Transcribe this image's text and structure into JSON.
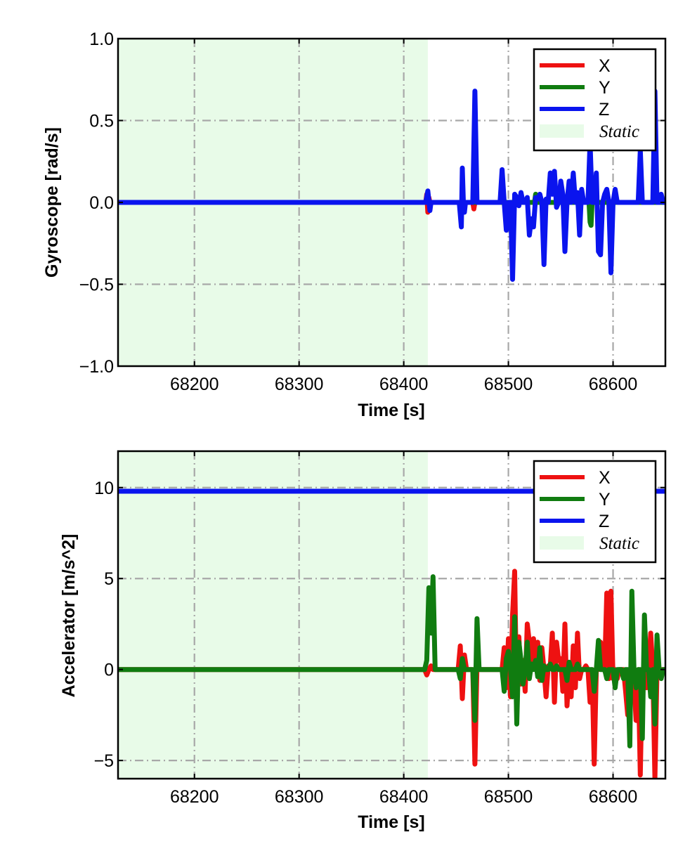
{
  "chart_data": [
    {
      "type": "line",
      "xlabel": "Time [s]",
      "ylabel": "Gyroscope [rad/s]",
      "xlim": [
        68127,
        68650
      ],
      "ylim": [
        -1.0,
        1.0
      ],
      "xticks": [
        68200,
        68300,
        68400,
        68500,
        68600
      ],
      "xtick_labels": [
        "68200",
        "68300",
        "68400",
        "68500",
        "68600"
      ],
      "yticks": [
        -1.0,
        -0.5,
        0.0,
        0.5,
        1.0
      ],
      "ytick_labels": [
        "−1.0",
        "−0.5",
        "0.0",
        "0.5",
        "1.0"
      ],
      "grid": true,
      "legend_position": "top-right",
      "static_region": {
        "label": "Static",
        "x": [
          68127,
          68423
        ],
        "color": "#e8fbe8"
      },
      "series": [
        {
          "name": "X",
          "color": "#ee1111",
          "x": [
            68127,
            68421,
            68422,
            68423,
            68424,
            68425,
            68466,
            68467,
            68468,
            68650
          ],
          "y": [
            0.0,
            0.0,
            0.05,
            -0.06,
            0.03,
            0.0,
            0.0,
            -0.04,
            0.0,
            0.0
          ]
        },
        {
          "name": "Y",
          "color": "#107c10",
          "x": [
            68127,
            68525,
            68526,
            68527,
            68577,
            68578,
            68579,
            68580,
            68650
          ],
          "y": [
            0.0,
            0.0,
            0.05,
            0.0,
            0.0,
            -0.12,
            -0.14,
            0.0,
            0.0
          ]
        },
        {
          "name": "Z",
          "color": "#0a14ee",
          "x": [
            68127,
            68421,
            68423,
            68425,
            68426,
            68453,
            68455,
            68456,
            68457,
            68458,
            68459,
            68464,
            68466,
            68468,
            68470,
            68472,
            68474,
            68492,
            68494,
            68496,
            68498,
            68500,
            68502,
            68504,
            68506,
            68508,
            68510,
            68512,
            68514,
            68516,
            68518,
            68520,
            68522,
            68524,
            68526,
            68528,
            68530,
            68532,
            68534,
            68536,
            68538,
            68540,
            68542,
            68544,
            68546,
            68548,
            68550,
            68552,
            68554,
            68556,
            68558,
            68560,
            68562,
            68564,
            68566,
            68568,
            68570,
            68572,
            68574,
            68576,
            68578,
            68580,
            68582,
            68584,
            68586,
            68588,
            68590,
            68592,
            68594,
            68596,
            68598,
            68600,
            68602,
            68604,
            68606,
            68620,
            68624,
            68626,
            68628,
            68630,
            68632,
            68634,
            68636,
            68638,
            68640,
            68642,
            68644,
            68646,
            68648,
            68650
          ],
          "y": [
            0.0,
            0.0,
            0.07,
            -0.05,
            0.0,
            0.0,
            -0.15,
            0.21,
            0.0,
            -0.06,
            0.0,
            0.0,
            0.0,
            0.68,
            0.0,
            0.0,
            0.0,
            0.0,
            0.2,
            0.0,
            -0.17,
            0.0,
            0.0,
            -0.47,
            0.05,
            0.03,
            -0.02,
            0.06,
            0.0,
            0.0,
            0.03,
            -0.2,
            -0.1,
            -0.15,
            0.03,
            0.02,
            0.05,
            0.0,
            -0.38,
            0.02,
            0.0,
            0.18,
            0.05,
            0.19,
            -0.03,
            0.0,
            0.13,
            0.05,
            -0.3,
            0.0,
            0.13,
            0.0,
            0.18,
            0.0,
            0.06,
            -0.2,
            0.08,
            0.0,
            0.0,
            0.0,
            0.37,
            0.0,
            0.0,
            0.18,
            -0.3,
            -0.32,
            0.0,
            0.05,
            0.08,
            0.0,
            -0.43,
            0.0,
            0.08,
            0.0,
            0.0,
            0.0,
            0.0,
            0.32,
            0.0,
            0.0,
            0.0,
            0.0,
            0.0,
            0.0,
            0.68,
            0.0,
            0.0,
            0.05,
            0.0,
            0.0
          ]
        }
      ]
    },
    {
      "type": "line",
      "xlabel": "Time [s]",
      "ylabel": "Accelerator [m/s^2]",
      "xlim": [
        68127,
        68650
      ],
      "ylim": [
        -6.0,
        12.0
      ],
      "xticks": [
        68200,
        68300,
        68400,
        68500,
        68600
      ],
      "xtick_labels": [
        "68200",
        "68300",
        "68400",
        "68500",
        "68600"
      ],
      "yticks": [
        -5,
        0,
        5,
        10
      ],
      "ytick_labels": [
        "−5",
        "0",
        "5",
        "10"
      ],
      "grid": true,
      "legend_position": "top-right",
      "static_region": {
        "label": "Static",
        "x": [
          68127,
          68423
        ],
        "color": "#e8fbe8"
      },
      "series": [
        {
          "name": "X",
          "color": "#ee1111",
          "x": [
            68127,
            68420,
            68422,
            68424,
            68426,
            68428,
            68452,
            68454,
            68456,
            68458,
            68460,
            68466,
            68468,
            68470,
            68472,
            68474,
            68494,
            68496,
            68498,
            68500,
            68502,
            68504,
            68506,
            68508,
            68510,
            68512,
            68514,
            68516,
            68518,
            68520,
            68522,
            68524,
            68526,
            68528,
            68530,
            68532,
            68534,
            68536,
            68538,
            68540,
            68542,
            68544,
            68546,
            68548,
            68550,
            68552,
            68554,
            68556,
            68558,
            68560,
            68562,
            68564,
            68566,
            68568,
            68570,
            68572,
            68574,
            68576,
            68578,
            68580,
            68582,
            68584,
            68586,
            68588,
            68590,
            68592,
            68594,
            68596,
            68598,
            68600,
            68602,
            68604,
            68606,
            68608,
            68610,
            68612,
            68614,
            68616,
            68618,
            68620,
            68622,
            68624,
            68626,
            68628,
            68630,
            68632,
            68634,
            68636,
            68638,
            68640,
            68642,
            68644,
            68646,
            68648,
            68650
          ],
          "y": [
            0.0,
            0.0,
            -0.3,
            0.0,
            0.2,
            0.0,
            0.0,
            1.3,
            -1.6,
            0.8,
            0.0,
            0.0,
            -5.2,
            0.3,
            0.0,
            0.0,
            0.0,
            1.2,
            -1.0,
            1.7,
            -1.5,
            3.0,
            5.4,
            -2.4,
            1.8,
            -0.8,
            0.5,
            -1.2,
            2.5,
            1.5,
            0.3,
            1.7,
            0.3,
            1.5,
            -0.6,
            1.2,
            0.0,
            -1.5,
            0.2,
            0.2,
            2.0,
            -1.8,
            1.5,
            0.5,
            0.6,
            -1.2,
            2.5,
            -2.0,
            0.0,
            -1.5,
            1.3,
            -1.0,
            2.0,
            -0.5,
            0.0,
            0.0,
            0.2,
            0.0,
            -1.8,
            0.0,
            -5.2,
            0.0,
            0.0,
            1.5,
            0.0,
            0.0,
            4.2,
            -0.5,
            4.3,
            -0.5,
            0.0,
            -0.5,
            0.0,
            0.0,
            0.0,
            -1.2,
            -2.5,
            0.0,
            0.0,
            -0.6,
            -2.8,
            0.0,
            -5.8,
            0.0,
            0.0,
            -1.0,
            0.0,
            2.0,
            0.0,
            -6.0,
            0.0,
            0.0,
            0.0,
            0.0,
            0.0
          ]
        },
        {
          "name": "Y",
          "color": "#107c10",
          "x": [
            68127,
            68420,
            68422,
            68424,
            68426,
            68428,
            68430,
            68452,
            68454,
            68456,
            68458,
            68460,
            68466,
            68468,
            68470,
            68472,
            68474,
            68494,
            68496,
            68498,
            68500,
            68502,
            68504,
            68506,
            68508,
            68510,
            68512,
            68514,
            68516,
            68518,
            68520,
            68522,
            68524,
            68526,
            68528,
            68530,
            68532,
            68534,
            68536,
            68538,
            68540,
            68542,
            68544,
            68546,
            68548,
            68550,
            68552,
            68554,
            68556,
            68558,
            68560,
            68562,
            68564,
            68566,
            68568,
            68570,
            68572,
            68574,
            68576,
            68578,
            68580,
            68582,
            68584,
            68586,
            68588,
            68590,
            68592,
            68594,
            68596,
            68598,
            68600,
            68602,
            68604,
            68606,
            68608,
            68610,
            68612,
            68614,
            68616,
            68618,
            68620,
            68622,
            68624,
            68626,
            68628,
            68630,
            68632,
            68634,
            68636,
            68638,
            68640,
            68642,
            68644,
            68646,
            68648,
            68650
          ],
          "y": [
            0.0,
            0.0,
            0.5,
            4.5,
            2.0,
            5.1,
            0.0,
            0.0,
            -0.5,
            0.6,
            0.0,
            0.0,
            0.0,
            -2.8,
            2.8,
            0.0,
            0.0,
            0.0,
            -1.2,
            0.6,
            1.0,
            0.0,
            -1.5,
            2.9,
            -3.0,
            1.5,
            0.5,
            -0.8,
            0.0,
            1.5,
            -0.5,
            0.3,
            0.0,
            0.5,
            -0.4,
            1.2,
            -0.6,
            0.2,
            0.0,
            0.0,
            0.3,
            0.0,
            0.0,
            0.2,
            0.0,
            0.0,
            0.0,
            0.0,
            -0.6,
            0.4,
            0.0,
            0.0,
            0.0,
            0.3,
            0.0,
            0.0,
            0.0,
            0.0,
            0.0,
            0.0,
            0.0,
            -1.2,
            0.0,
            1.6,
            0.0,
            0.0,
            0.0,
            -0.5,
            0.0,
            0.0,
            0.0,
            -1.0,
            0.0,
            0.0,
            0.0,
            -0.5,
            0.0,
            0.0,
            -4.2,
            4.3,
            0.0,
            -1.0,
            0.0,
            0.0,
            -3.8,
            3.0,
            0.0,
            0.0,
            -1.5,
            0.0,
            -3.0,
            1.9,
            0.0,
            -0.5,
            0.0,
            0.0
          ]
        },
        {
          "name": "Z",
          "color": "#0a14ee",
          "x": [
            68127,
            68650
          ],
          "y": [
            9.8,
            9.8
          ]
        }
      ]
    }
  ]
}
